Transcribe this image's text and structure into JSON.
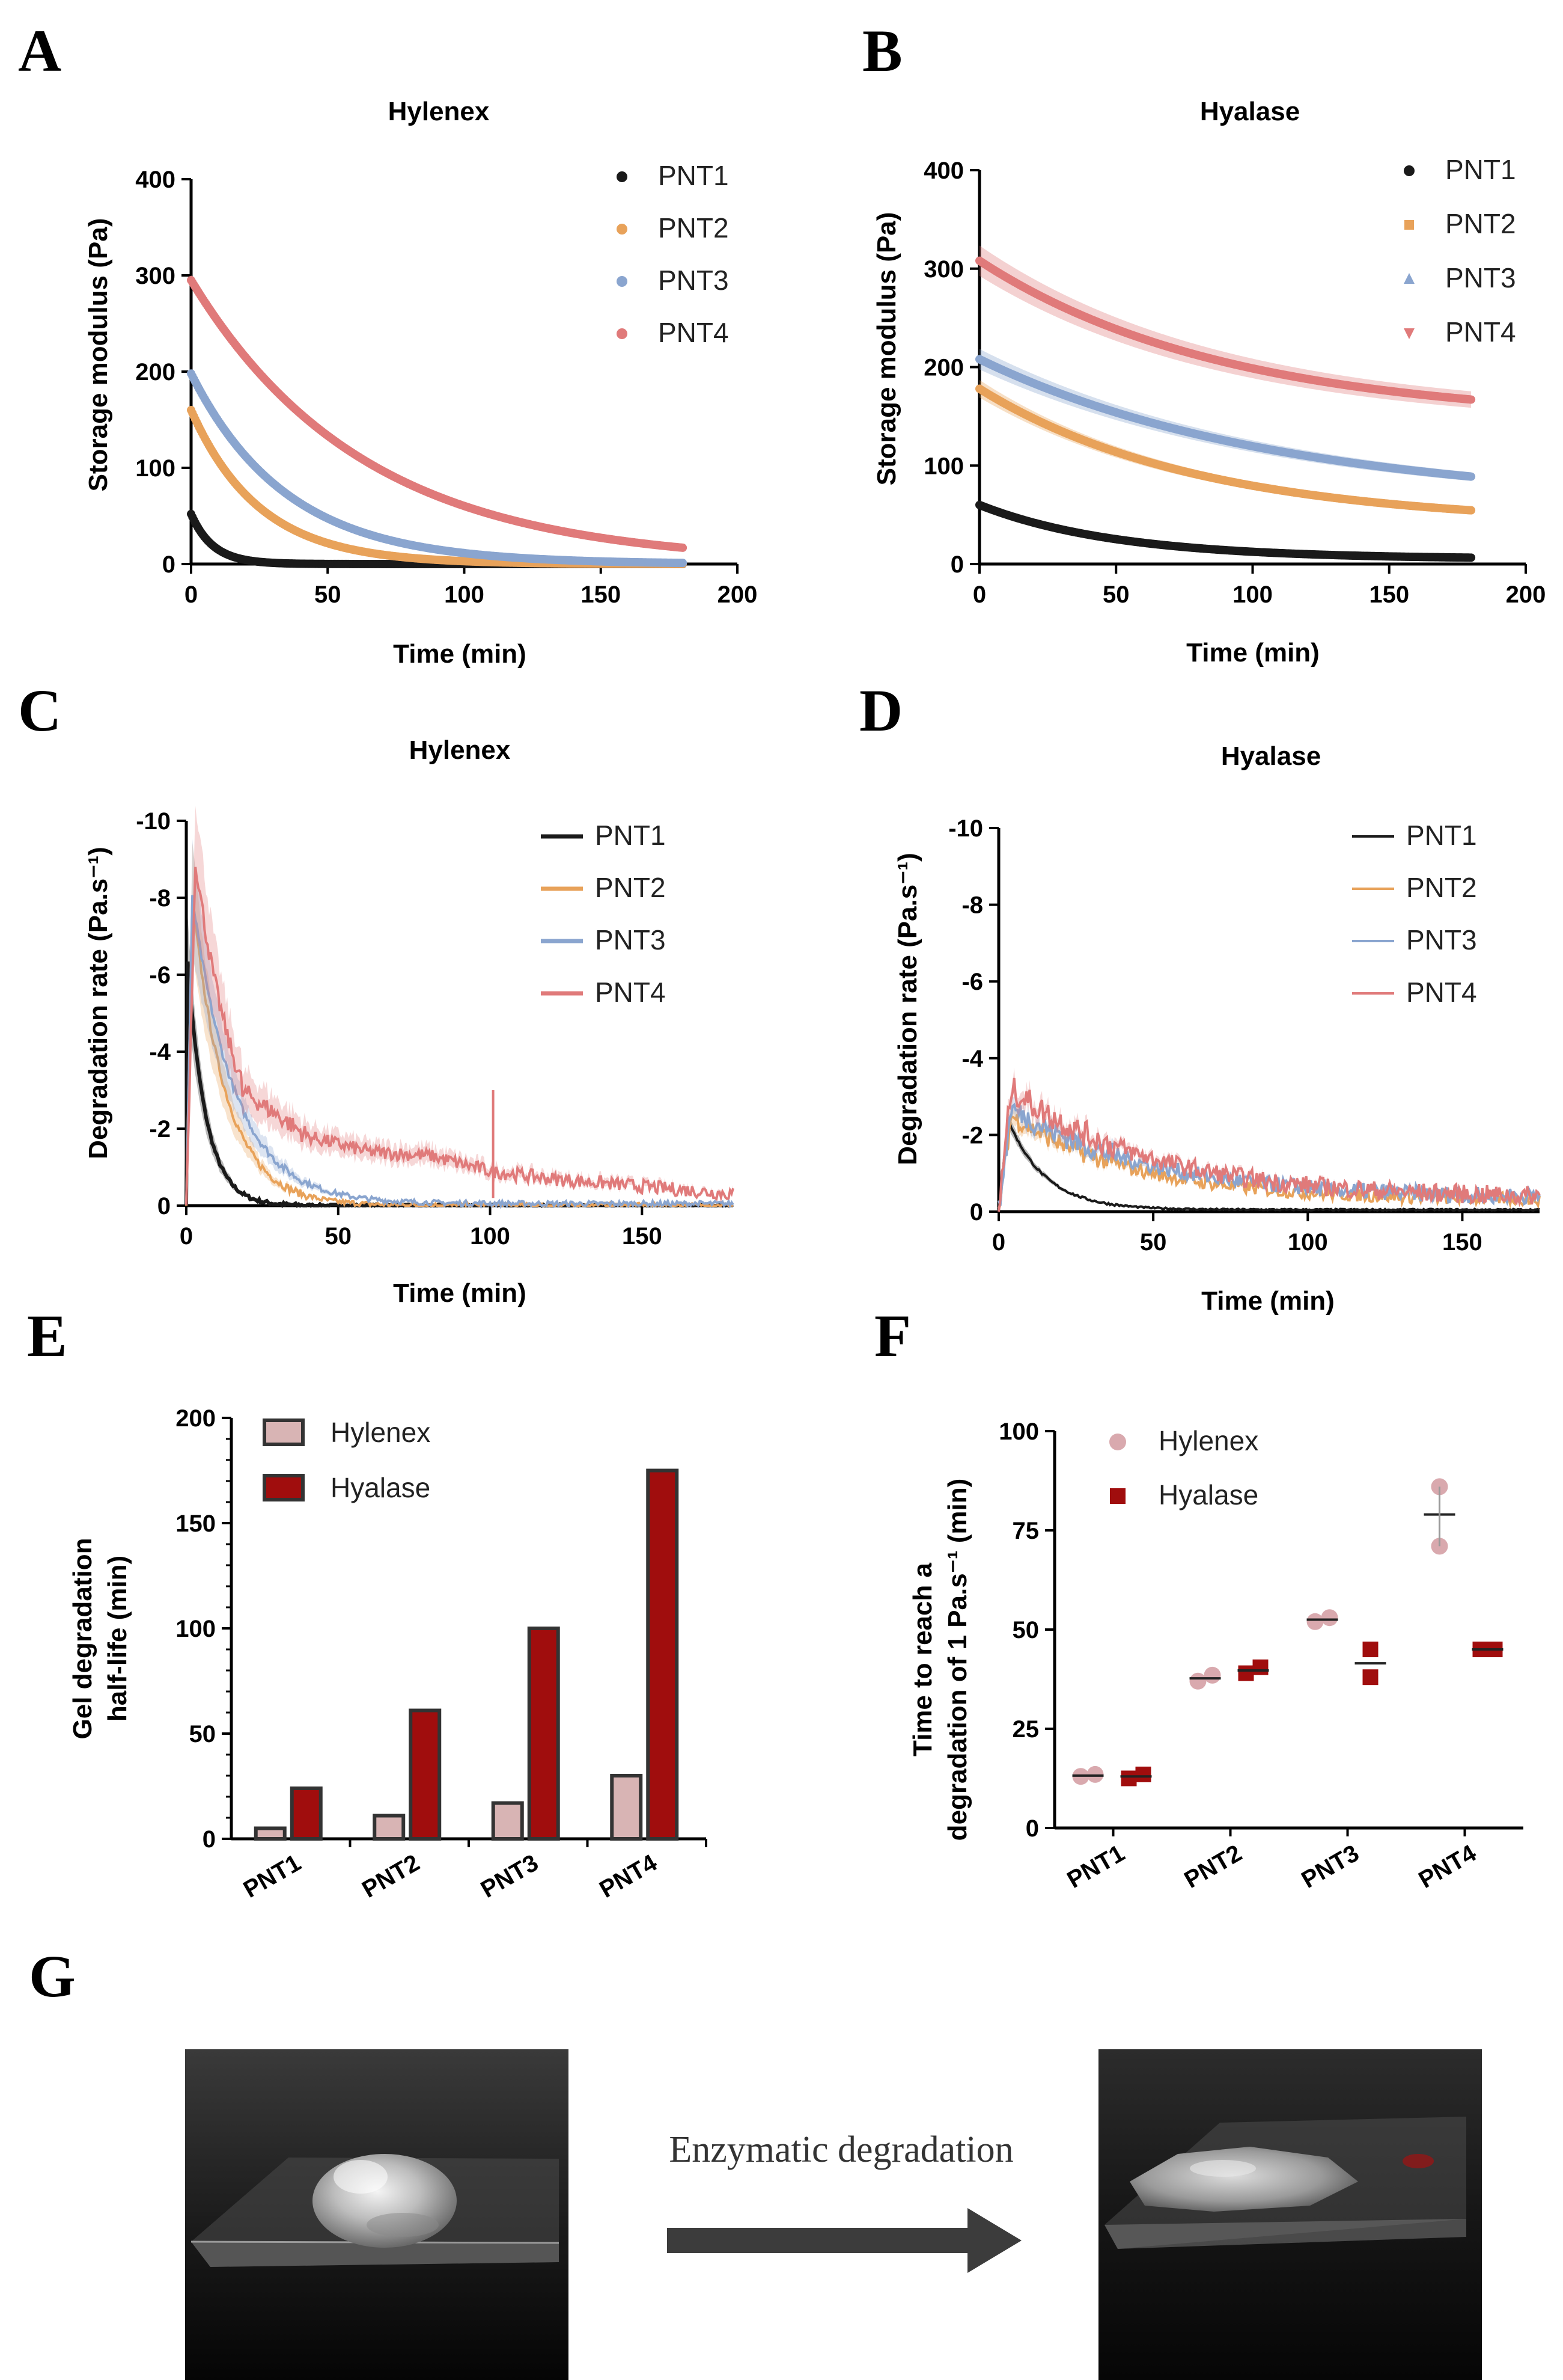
{
  "panel_labels": {
    "a": "A",
    "b": "B",
    "c": "C",
    "d": "D",
    "e": "E",
    "f": "F",
    "g": "G"
  },
  "colors": {
    "PNT1": "#1a1a1a",
    "PNT2": "#e8a25a",
    "PNT3": "#8aa5cf",
    "PNT4": "#e07a7a",
    "hylenex_bar": "#d8b4b4",
    "hyalase_bar": "#a00d0d",
    "hylenex_dot": "#d9a9ae",
    "hyalase_sq": "#a00d0d"
  },
  "chart_data": [
    {
      "id": "A",
      "type": "scatter",
      "title": "Hylenex",
      "xlabel": "Time (min)",
      "ylabel": "Storage modulus (Pa)",
      "xlim": [
        0,
        200
      ],
      "ylim": [
        0,
        400
      ],
      "xticks": [
        "0",
        "50",
        "100",
        "150",
        "200"
      ],
      "yticks": [
        "0",
        "100",
        "200",
        "300",
        "400"
      ],
      "legend": [
        "PNT1",
        "PNT2",
        "PNT3",
        "PNT4"
      ],
      "series": [
        {
          "name": "PNT1",
          "model": "decay",
          "y0": 52,
          "inf": 0,
          "tau": 8,
          "xmax": 180
        },
        {
          "name": "PNT2",
          "model": "decay",
          "y0": 160,
          "inf": 0,
          "tau": 25,
          "xmax": 180
        },
        {
          "name": "PNT3",
          "model": "decay",
          "y0": 198,
          "inf": 0,
          "tau": 35,
          "xmax": 180
        },
        {
          "name": "PNT4",
          "model": "decay",
          "y0": 295,
          "inf": 0,
          "tau": 63,
          "xmax": 180
        }
      ]
    },
    {
      "id": "B",
      "type": "scatter",
      "title": "Hyalase",
      "xlabel": "Time (min)",
      "ylabel": "Storage modulus (Pa)",
      "xlim": [
        0,
        200
      ],
      "ylim": [
        0,
        400
      ],
      "xticks": [
        "0",
        "50",
        "100",
        "150",
        "200"
      ],
      "yticks": [
        "0",
        "100",
        "200",
        "300",
        "400"
      ],
      "legend": [
        "PNT1",
        "PNT2",
        "PNT3",
        "PNT4"
      ],
      "series": [
        {
          "name": "PNT1",
          "model": "decay",
          "y0": 60,
          "inf": 5,
          "tau": 50,
          "xmax": 180
        },
        {
          "name": "PNT2",
          "model": "decay",
          "y0": 178,
          "inf": 40,
          "tau": 80,
          "xmax": 180
        },
        {
          "name": "PNT3",
          "model": "decay",
          "y0": 208,
          "inf": 60,
          "tau": 110,
          "xmax": 180
        },
        {
          "name": "PNT4",
          "model": "decay",
          "y0": 308,
          "inf": 145,
          "tau": 90,
          "xmax": 180
        }
      ]
    },
    {
      "id": "C",
      "type": "line",
      "title": "Hylenex",
      "xlabel": "Time (min)",
      "ylabel": "Degradation rate (Pa.s⁻¹)",
      "xlim": [
        0,
        180
      ],
      "ylim": [
        0,
        -10
      ],
      "xticks": [
        "0",
        "50",
        "100",
        "150"
      ],
      "yticks": [
        "0",
        "-2",
        "-4",
        "-6",
        "-8",
        "-10"
      ],
      "legend": [
        "PNT1",
        "PNT2",
        "PNT3",
        "PNT4"
      ],
      "series": [
        {
          "name": "PNT1",
          "model": "peak",
          "peak": 6.3,
          "tpeak": 0.5,
          "tau": 6,
          "floor": 0,
          "noise": 0.05,
          "xmax": 180
        },
        {
          "name": "PNT2",
          "model": "peak",
          "peak": 8.0,
          "tpeak": 2,
          "tau": 11,
          "floor": 0,
          "noise": 0.1,
          "xmax": 180
        },
        {
          "name": "PNT3",
          "model": "peak",
          "peak": 8.0,
          "tpeak": 2,
          "tau": 14,
          "floor": 0.05,
          "noise": 0.1,
          "xmax": 180
        },
        {
          "name": "PNT4",
          "model": "peak",
          "peak": 9.0,
          "tpeak": 3,
          "tau": 14,
          "floor": 0.3,
          "noise": 0.25,
          "tail": [
            [
              20,
              2.9
            ],
            [
              40,
              1.8
            ],
            [
              60,
              1.4
            ],
            [
              80,
              1.3
            ],
            [
              100,
              0.9
            ],
            [
              120,
              0.7
            ],
            [
              150,
              0.5
            ],
            [
              180,
              0.3
            ]
          ],
          "xmax": 180
        }
      ]
    },
    {
      "id": "D",
      "type": "line",
      "title": "Hyalase",
      "xlabel": "Time (min)",
      "ylabel": "Degradation rate (Pa.s⁻¹)",
      "xlim": [
        0,
        175
      ],
      "ylim": [
        0,
        -10
      ],
      "xticks": [
        "0",
        "50",
        "100",
        "150"
      ],
      "yticks": [
        "0",
        "-2",
        "-4",
        "-6",
        "-8",
        "-10"
      ],
      "legend": [
        "PNT1",
        "PNT2",
        "PNT3",
        "PNT4"
      ],
      "series": [
        {
          "name": "PNT1",
          "model": "peak",
          "peak": 2.4,
          "tpeak": 3,
          "tau": 12,
          "floor": 0.05,
          "noise": 0.03,
          "xmax": 175
        },
        {
          "name": "PNT2",
          "model": "peak",
          "peak": 2.5,
          "tpeak": 4,
          "tau": 40,
          "floor": 0.3,
          "noise": 0.25,
          "xmax": 175
        },
        {
          "name": "PNT3",
          "model": "peak",
          "peak": 2.7,
          "tpeak": 4,
          "tau": 45,
          "floor": 0.35,
          "noise": 0.3,
          "xmax": 175
        },
        {
          "name": "PNT4",
          "model": "peak",
          "peak": 3.2,
          "tpeak": 4,
          "tau": 45,
          "floor": 0.35,
          "noise": 0.35,
          "xmax": 175
        }
      ]
    },
    {
      "id": "E",
      "type": "bar",
      "title": "",
      "xlabel": "",
      "ylabel": "Gel degradation half-life (min)",
      "ylabel_lines": [
        "Gel degradation",
        "half-life (min)"
      ],
      "ylim": [
        0,
        200
      ],
      "yticks": [
        "0",
        "50",
        "100",
        "150",
        "200"
      ],
      "categories": [
        "PNT1",
        "PNT2",
        "PNT3",
        "PNT4"
      ],
      "legend": [
        "Hylenex",
        "Hyalase"
      ],
      "series": [
        {
          "name": "Hylenex",
          "values": [
            5,
            11,
            17,
            30
          ]
        },
        {
          "name": "Hyalase",
          "values": [
            24,
            61,
            100,
            175
          ]
        }
      ]
    },
    {
      "id": "F",
      "type": "scatter",
      "title": "",
      "xlabel": "",
      "ylabel": "Time to reach a degradation of 1 Pa.s⁻¹ (min)",
      "ylabel_lines": [
        "Time to reach a",
        "degradation of 1 Pa.s⁻¹ (min)"
      ],
      "ylim": [
        0,
        100
      ],
      "yticks": [
        "0",
        "25",
        "50",
        "75",
        "100"
      ],
      "categories": [
        "PNT1",
        "PNT2",
        "PNT3",
        "PNT4"
      ],
      "legend": [
        "Hylenex",
        "Hyalase"
      ],
      "series": [
        {
          "name": "Hylenex",
          "points": [
            [
              13,
              13.5
            ],
            [
              37,
              38.5
            ],
            [
              52,
              53
            ],
            [
              86,
              71
            ]
          ],
          "means": [
            13.2,
            37.7,
            52.5,
            79
          ]
        },
        {
          "name": "Hyalase",
          "points": [
            [
              12.5,
              13.5
            ],
            [
              39,
              40.5
            ],
            [
              45,
              38
            ],
            [
              45,
              45
            ]
          ],
          "means": [
            13,
            39.7,
            41.5,
            45
          ]
        }
      ]
    }
  ],
  "panel_g": {
    "caption": "Enzymatic degradation",
    "before_label": "hydrogel-before-photo",
    "after_label": "hydrogel-after-photo"
  }
}
